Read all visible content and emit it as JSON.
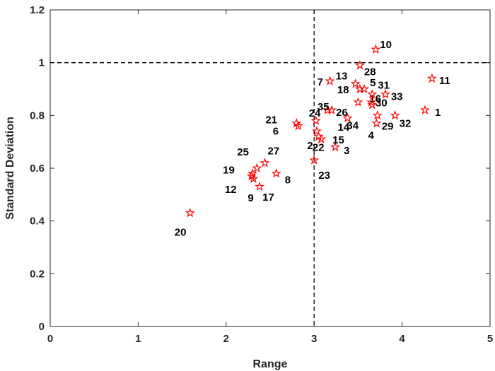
{
  "chart_data": {
    "type": "scatter",
    "xlabel": "Range",
    "ylabel": "Standard Deviation",
    "xlim": [
      0,
      5
    ],
    "ylim": [
      0,
      1.2
    ],
    "xticks": [
      "0",
      "1",
      "2",
      "3",
      "4",
      "5"
    ],
    "yticks": [
      "0",
      "0.2",
      "0.4",
      "0.6",
      "0.8",
      "1",
      "1.2"
    ],
    "grid": false,
    "marker": "pentagram",
    "marker_color": "#ff0000",
    "reference_lines": [
      {
        "orientation": "vertical",
        "value": 3,
        "style": "dashed",
        "color": "#000000"
      },
      {
        "orientation": "horizontal",
        "value": 1,
        "style": "dashed",
        "color": "#000000"
      }
    ],
    "points": [
      {
        "label": "1",
        "x": 4.26,
        "y": 0.82
      },
      {
        "label": "2",
        "x": 3.05,
        "y": 0.72
      },
      {
        "label": "3",
        "x": 3.24,
        "y": 0.68
      },
      {
        "label": "4",
        "x": 3.71,
        "y": 0.77
      },
      {
        "label": "5",
        "x": 3.57,
        "y": 0.9
      },
      {
        "label": "6",
        "x": 2.82,
        "y": 0.76
      },
      {
        "label": "7",
        "x": 3.18,
        "y": 0.93
      },
      {
        "label": "8",
        "x": 2.57,
        "y": 0.58
      },
      {
        "label": "9",
        "x": 2.31,
        "y": 0.56
      },
      {
        "label": "10",
        "x": 3.7,
        "y": 1.05
      },
      {
        "label": "11",
        "x": 4.34,
        "y": 0.94
      },
      {
        "label": "12",
        "x": 2.29,
        "y": 0.57
      },
      {
        "label": "13",
        "x": 3.47,
        "y": 0.92
      },
      {
        "label": "14",
        "x": 3.38,
        "y": 0.79
      },
      {
        "label": "15",
        "x": 3.08,
        "y": 0.71
      },
      {
        "label": "16",
        "x": 3.66,
        "y": 0.84
      },
      {
        "label": "17",
        "x": 2.38,
        "y": 0.53
      },
      {
        "label": "18",
        "x": 3.52,
        "y": 0.9
      },
      {
        "label": "19",
        "x": 2.3,
        "y": 0.58
      },
      {
        "label": "20",
        "x": 1.59,
        "y": 0.43
      },
      {
        "label": "21",
        "x": 2.8,
        "y": 0.77
      },
      {
        "label": "22",
        "x": 3.03,
        "y": 0.74
      },
      {
        "label": "23",
        "x": 3.0,
        "y": 0.63
      },
      {
        "label": "24",
        "x": 3.02,
        "y": 0.78
      },
      {
        "label": "25",
        "x": 2.35,
        "y": 0.6
      },
      {
        "label": "26",
        "x": 3.2,
        "y": 0.82
      },
      {
        "label": "27",
        "x": 2.44,
        "y": 0.62
      },
      {
        "label": "28",
        "x": 3.52,
        "y": 0.99
      },
      {
        "label": "29",
        "x": 3.72,
        "y": 0.8
      },
      {
        "label": "30",
        "x": 3.65,
        "y": 0.85
      },
      {
        "label": "31",
        "x": 3.66,
        "y": 0.88
      },
      {
        "label": "32",
        "x": 3.92,
        "y": 0.8
      },
      {
        "label": "33",
        "x": 3.81,
        "y": 0.88
      },
      {
        "label": "34",
        "x": 3.5,
        "y": 0.85
      },
      {
        "label": "35",
        "x": 3.15,
        "y": 0.82
      }
    ]
  }
}
